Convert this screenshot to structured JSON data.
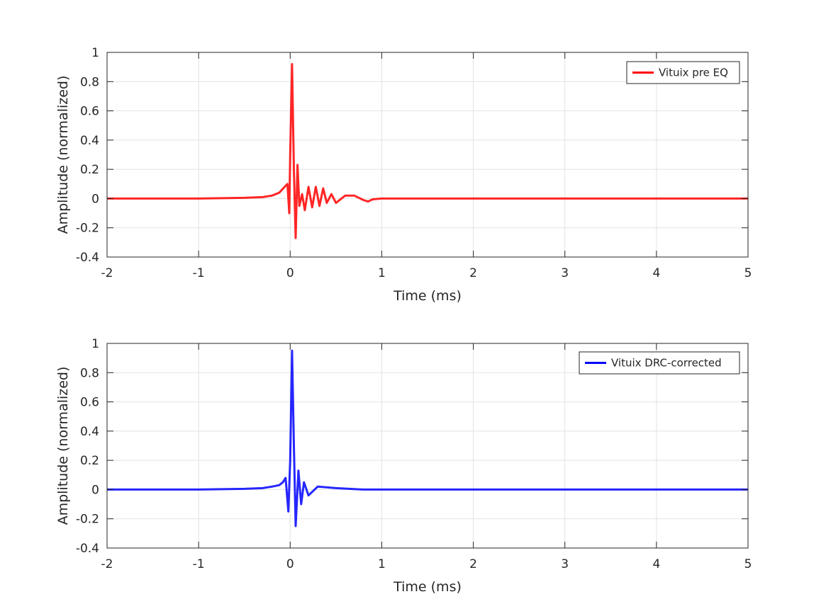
{
  "chart_data": [
    {
      "type": "line",
      "xlabel": "Time (ms)",
      "ylabel": "Amplitude (normalized)",
      "xlim": [
        -2,
        5
      ],
      "ylim": [
        -0.4,
        1
      ],
      "xticks": [
        "-2",
        "-1",
        "0",
        "1",
        "2",
        "3",
        "4",
        "5"
      ],
      "yticks": [
        "-0.4",
        "-0.2",
        "0",
        "0.2",
        "0.4",
        "0.6",
        "0.8",
        "1"
      ],
      "grid": true,
      "legend_position": "top-right",
      "series": [
        {
          "name": "Vituix pre EQ",
          "color": "#ff0000",
          "x": [
            -2.0,
            -1.0,
            -0.5,
            -0.3,
            -0.2,
            -0.12,
            -0.06,
            -0.03,
            -0.01,
            0.0,
            0.02,
            0.04,
            0.06,
            0.08,
            0.1,
            0.13,
            0.16,
            0.2,
            0.24,
            0.28,
            0.32,
            0.36,
            0.4,
            0.45,
            0.5,
            0.6,
            0.7,
            0.8,
            0.85,
            0.9,
            1.0,
            1.2,
            2.0,
            3.0,
            4.0,
            5.0
          ],
          "y": [
            0.0,
            0.0,
            0.005,
            0.01,
            0.02,
            0.04,
            0.08,
            0.1,
            -0.1,
            0.3,
            0.92,
            0.2,
            -0.27,
            0.23,
            -0.05,
            0.03,
            -0.08,
            0.08,
            -0.06,
            0.08,
            -0.05,
            0.07,
            -0.03,
            0.03,
            -0.03,
            0.02,
            0.02,
            -0.01,
            -0.02,
            -0.005,
            0.0,
            0.0,
            0.0,
            0.0,
            0.0,
            0.0
          ]
        },
        {
          "name": "Vituix DRC-corrected",
          "color": "#0000ff",
          "x": [
            -2.0,
            -1.0,
            -0.5,
            -0.3,
            -0.2,
            -0.12,
            -0.08,
            -0.05,
            -0.02,
            0.0,
            0.02,
            0.04,
            0.06,
            0.09,
            0.12,
            0.15,
            0.2,
            0.3,
            0.5,
            0.8,
            1.0,
            2.0,
            3.0,
            4.0,
            5.0
          ],
          "y": [
            0.0,
            0.0,
            0.005,
            0.01,
            0.02,
            0.03,
            0.05,
            0.08,
            -0.15,
            0.2,
            0.95,
            0.3,
            -0.25,
            0.13,
            -0.1,
            0.05,
            -0.04,
            0.02,
            0.01,
            0.0,
            0.0,
            0.0,
            0.0,
            0.0,
            0.0
          ]
        }
      ]
    }
  ]
}
